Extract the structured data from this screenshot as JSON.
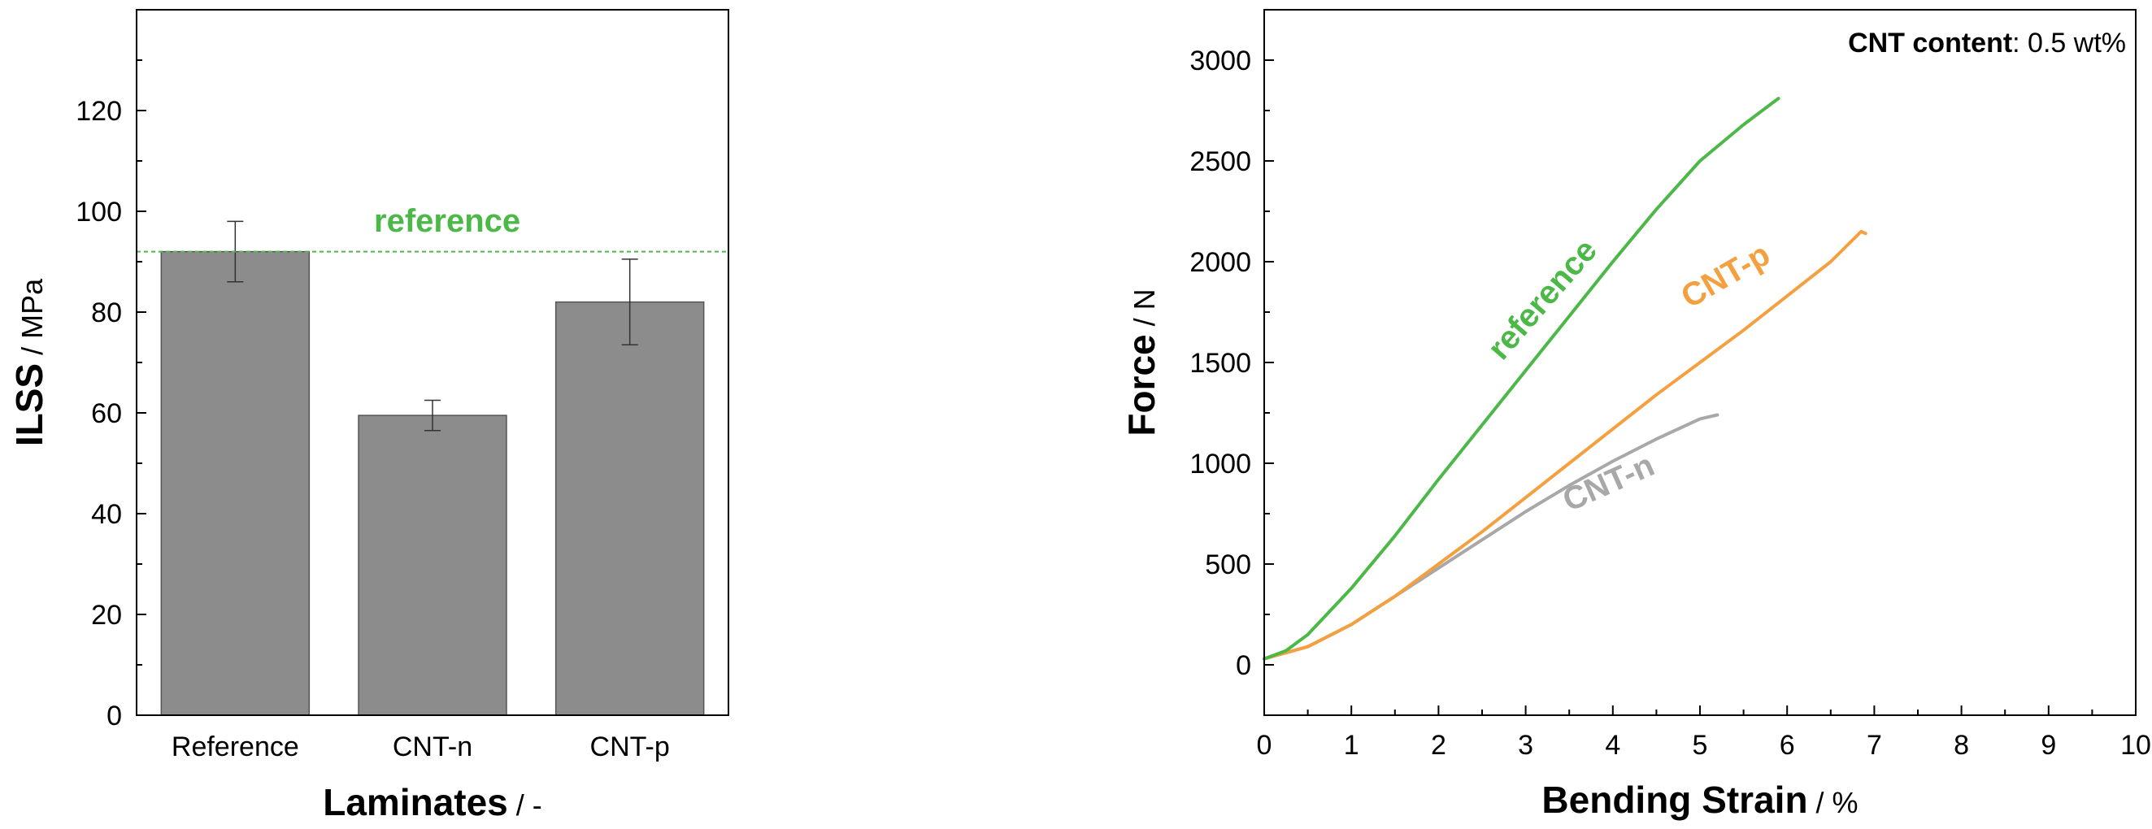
{
  "chart_data": [
    {
      "type": "bar",
      "categories": [
        "Reference",
        "CNT-n",
        "CNT-p"
      ],
      "values": [
        92,
        59.5,
        82
      ],
      "errors": [
        6,
        3,
        8.5
      ],
      "ylim": [
        0,
        140
      ],
      "yticks": [
        0,
        20,
        40,
        60,
        80,
        100,
        120
      ],
      "ylabel_bold": "ILSS",
      "ylabel_unit": " / MPa",
      "xlabel_bold": "Laminates",
      "xlabel_unit": " / -",
      "reference_line": {
        "value": 92,
        "label": "reference",
        "color": "#4CB848"
      },
      "bar_color": "#8C8C8C"
    },
    {
      "type": "line",
      "xlim": [
        0,
        10
      ],
      "ylim": [
        -250,
        3250
      ],
      "xticks": [
        0,
        1,
        2,
        3,
        4,
        5,
        6,
        7,
        8,
        9,
        10
      ],
      "yticks": [
        0,
        500,
        1000,
        1500,
        2000,
        2500,
        3000
      ],
      "xlabel_bold": "Bending Strain",
      "xlabel_unit": " / %",
      "ylabel_bold": "Force",
      "ylabel_unit": " / N",
      "annotation_bold": "CNT content",
      "annotation_rest": ": 0.5 wt%",
      "series": [
        {
          "name": "reference",
          "color": "#4CB848",
          "x": [
            0,
            0.25,
            0.5,
            1,
            1.5,
            2,
            2.5,
            3,
            3.5,
            4,
            4.5,
            5,
            5.5,
            5.9
          ],
          "y": [
            30,
            70,
            150,
            380,
            640,
            920,
            1190,
            1460,
            1730,
            2000,
            2260,
            2500,
            2680,
            2810
          ]
        },
        {
          "name": "CNT-p",
          "color": "#F5A040",
          "x": [
            0,
            0.5,
            1,
            1.5,
            2,
            2.5,
            3,
            3.5,
            4,
            4.5,
            5,
            5.5,
            6,
            6.5,
            6.85,
            6.9
          ],
          "y": [
            30,
            90,
            200,
            340,
            500,
            660,
            830,
            1000,
            1170,
            1340,
            1500,
            1660,
            1830,
            2000,
            2150,
            2140
          ]
        },
        {
          "name": "CNT-n",
          "color": "#A8A8A8",
          "x": [
            0,
            0.5,
            1,
            1.5,
            2,
            2.5,
            3,
            3.5,
            4,
            4.5,
            5,
            5.2
          ],
          "y": [
            30,
            90,
            200,
            340,
            480,
            620,
            760,
            890,
            1010,
            1120,
            1220,
            1240
          ]
        }
      ]
    }
  ]
}
